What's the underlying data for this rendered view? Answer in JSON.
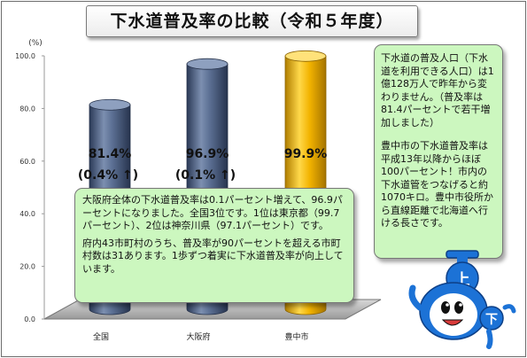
{
  "title": "下水道普及率の比較（令和５年度）",
  "chart_data": {
    "type": "bar",
    "style": "3d-cylinder",
    "unit_label": "(%)",
    "ylim": [
      0,
      100
    ],
    "yticks": [
      "0.0",
      "20.0",
      "40.0",
      "60.0",
      "80.0",
      "100.0"
    ],
    "categories": [
      "全国",
      "大阪府",
      "豊中市"
    ],
    "values": [
      81.4,
      96.9,
      99.9
    ],
    "value_labels": [
      "81.4%",
      "96.9%",
      "99.9%"
    ],
    "change_labels": [
      "(0.4% ↑)",
      "(0.1% ↑)",
      ""
    ],
    "colors": [
      "#4f6586",
      "#4f6586",
      "#f5b800"
    ],
    "grid": false
  },
  "notes": {
    "osaka_p1": "大阪府全体の下水道普及率は0.1パーセント増えて、96.9パーセントになりました。全国3位です。1位は東京都（99.7パーセント）、2位は神奈川県（97.1パーセント）です。",
    "osaka_p2": "府内43市町村のうち、普及率が90パーセントを超える市町村数は31あります。1歩ずつ着実に下水道普及率が向上しています。",
    "right_p1": "下水道の普及人口（下水道を利用できる人口）は1億128万人で昨年から変わりません。（普及率は81.4パーセントで若干増加しました）",
    "right_p2": "豊中市の下水道普及率は平成13年以降からほぼ100パーセント！市内の下水道管をつなげると約1070キロ。豊中市役所から直線距離で北海道へ行ける長さです。"
  },
  "mascot": {
    "icon": "sewer-mascot-icon",
    "text_top": "上",
    "text_bottom": "下"
  }
}
